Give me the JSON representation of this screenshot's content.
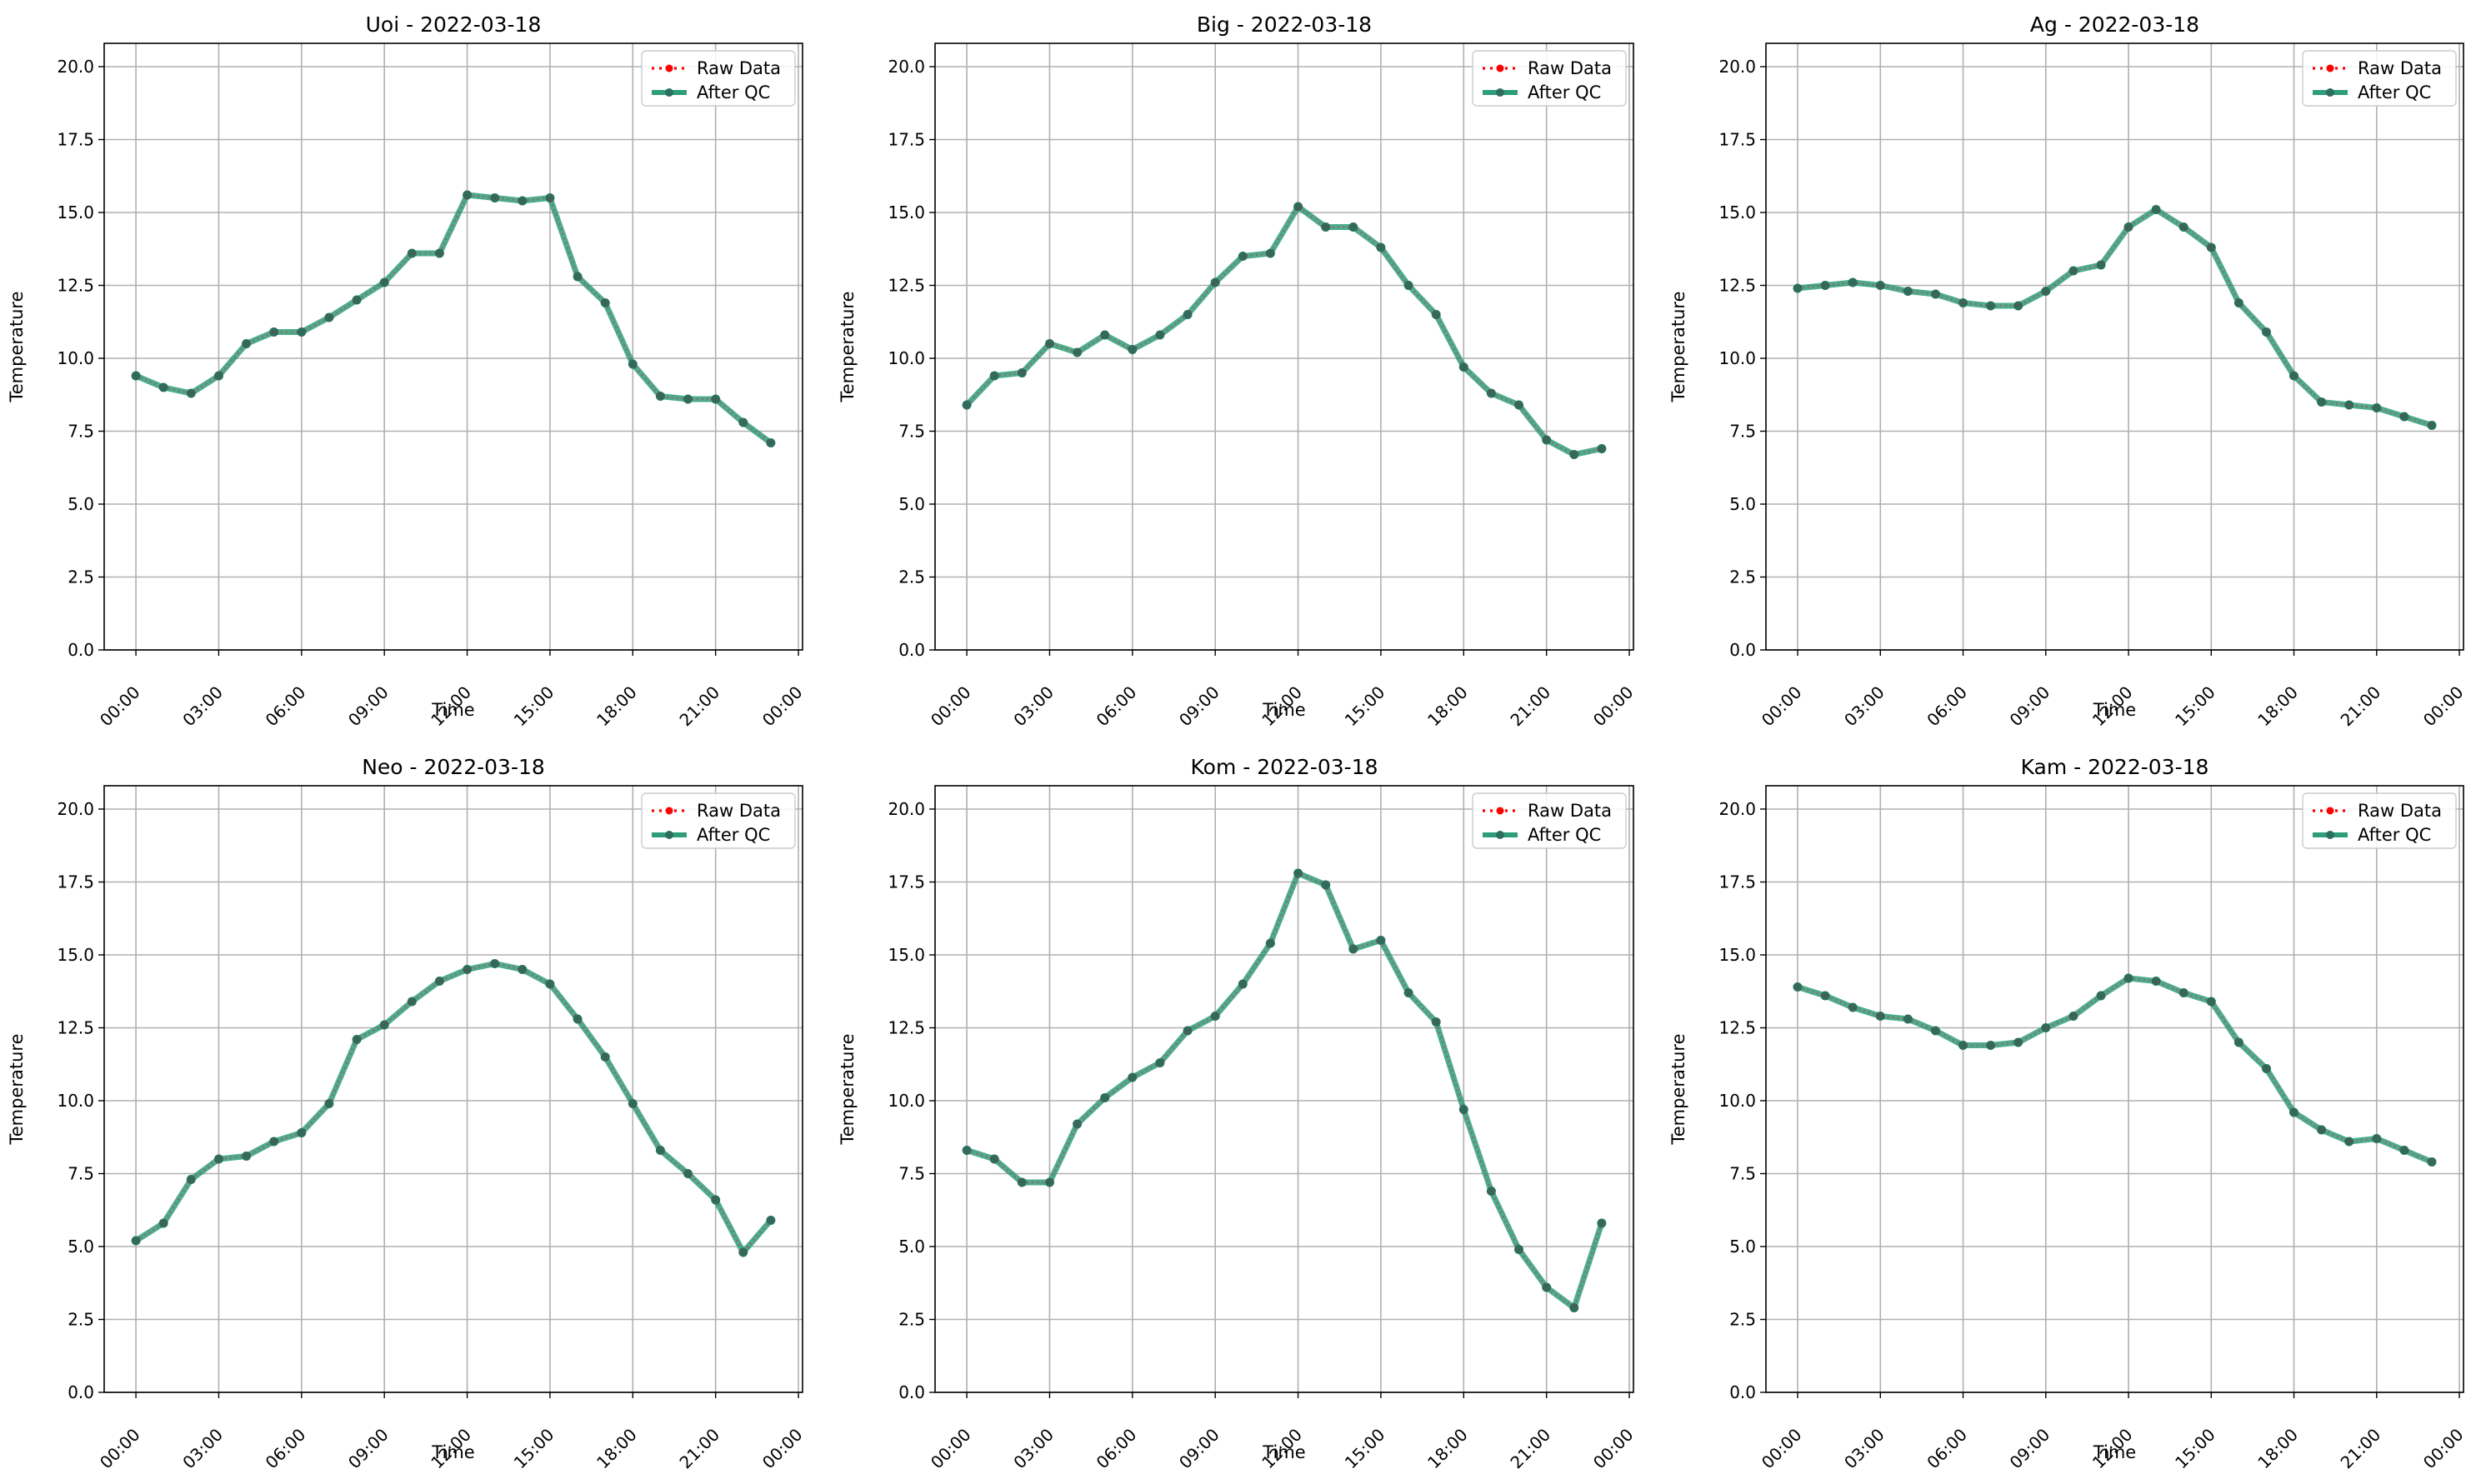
{
  "colors": {
    "raw": "#ff0000",
    "after_qc": "#2e9e7a",
    "after_qc_marker": "#2d6e5e",
    "grid": "#b0b0b0",
    "axes": "#000000"
  },
  "chart_data": [
    {
      "type": "line",
      "title": "Uoi - 2022-03-18",
      "xlabel": "Time",
      "ylabel": "Temperature",
      "x_hours": [
        0,
        1,
        2,
        3,
        4,
        5,
        6,
        7,
        8,
        9,
        10,
        11,
        12,
        13,
        14,
        15,
        16,
        17,
        18,
        19,
        20,
        21,
        22,
        23
      ],
      "x_ticks": [
        "00:00",
        "03:00",
        "06:00",
        "09:00",
        "12:00",
        "15:00",
        "18:00",
        "21:00",
        "00:00"
      ],
      "xlim_hours": [
        -1.15,
        24.15
      ],
      "ylim": [
        0,
        20.8
      ],
      "y_ticks": [
        "0.0",
        "2.5",
        "5.0",
        "7.5",
        "10.0",
        "12.5",
        "15.0",
        "17.5",
        "20.0"
      ],
      "grid": true,
      "legend": "top-right",
      "series": [
        {
          "name": "Raw Data",
          "style": "dotted",
          "values": [
            9.4,
            9.0,
            8.8,
            9.4,
            10.5,
            10.9,
            10.9,
            11.4,
            12.0,
            12.6,
            13.6,
            13.6,
            15.6,
            15.5,
            15.4,
            15.5,
            12.8,
            11.9,
            9.8,
            8.7,
            8.6,
            8.6,
            7.8,
            7.1
          ]
        },
        {
          "name": "After QC",
          "style": "solid",
          "values": [
            9.4,
            9.0,
            8.8,
            9.4,
            10.5,
            10.9,
            10.9,
            11.4,
            12.0,
            12.6,
            13.6,
            13.6,
            15.6,
            15.5,
            15.4,
            15.5,
            12.8,
            11.9,
            9.8,
            8.7,
            8.6,
            8.6,
            7.8,
            7.1
          ]
        }
      ]
    },
    {
      "type": "line",
      "title": "Big - 2022-03-18",
      "xlabel": "Time",
      "ylabel": "Temperature",
      "x_hours": [
        0,
        1,
        2,
        3,
        4,
        5,
        6,
        7,
        8,
        9,
        10,
        11,
        12,
        13,
        14,
        15,
        16,
        17,
        18,
        19,
        20,
        21,
        22,
        23
      ],
      "x_ticks": [
        "00:00",
        "03:00",
        "06:00",
        "09:00",
        "12:00",
        "15:00",
        "18:00",
        "21:00",
        "00:00"
      ],
      "xlim_hours": [
        -1.15,
        24.15
      ],
      "ylim": [
        0,
        20.8
      ],
      "y_ticks": [
        "0.0",
        "2.5",
        "5.0",
        "7.5",
        "10.0",
        "12.5",
        "15.0",
        "17.5",
        "20.0"
      ],
      "grid": true,
      "legend": "top-right",
      "series": [
        {
          "name": "Raw Data",
          "style": "dotted",
          "values": [
            8.4,
            9.4,
            9.5,
            10.5,
            10.2,
            10.8,
            10.3,
            10.8,
            11.5,
            12.6,
            13.5,
            13.6,
            15.2,
            14.5,
            14.5,
            13.8,
            12.5,
            11.5,
            9.7,
            8.8,
            8.4,
            7.2,
            6.7,
            6.9
          ]
        },
        {
          "name": "After QC",
          "style": "solid",
          "values": [
            8.4,
            9.4,
            9.5,
            10.5,
            10.2,
            10.8,
            10.3,
            10.8,
            11.5,
            12.6,
            13.5,
            13.6,
            15.2,
            14.5,
            14.5,
            13.8,
            12.5,
            11.5,
            9.7,
            8.8,
            8.4,
            7.2,
            6.7,
            6.9
          ]
        }
      ]
    },
    {
      "type": "line",
      "title": "Ag - 2022-03-18",
      "xlabel": "Time",
      "ylabel": "Temperature",
      "x_hours": [
        0,
        1,
        2,
        3,
        4,
        5,
        6,
        7,
        8,
        9,
        10,
        11,
        12,
        13,
        14,
        15,
        16,
        17,
        18,
        19,
        20,
        21,
        22,
        23
      ],
      "x_ticks": [
        "00:00",
        "03:00",
        "06:00",
        "09:00",
        "12:00",
        "15:00",
        "18:00",
        "21:00",
        "00:00"
      ],
      "xlim_hours": [
        -1.15,
        24.15
      ],
      "ylim": [
        0,
        20.8
      ],
      "y_ticks": [
        "0.0",
        "2.5",
        "5.0",
        "7.5",
        "10.0",
        "12.5",
        "15.0",
        "17.5",
        "20.0"
      ],
      "grid": true,
      "legend": "top-right",
      "series": [
        {
          "name": "Raw Data",
          "style": "dotted",
          "values": [
            12.4,
            12.5,
            12.6,
            12.5,
            12.3,
            12.2,
            11.9,
            11.8,
            11.8,
            12.3,
            13.0,
            13.2,
            14.5,
            15.1,
            14.5,
            13.8,
            11.9,
            10.9,
            9.4,
            8.5,
            8.4,
            8.3,
            8.0,
            7.7
          ]
        },
        {
          "name": "After QC",
          "style": "solid",
          "values": [
            12.4,
            12.5,
            12.6,
            12.5,
            12.3,
            12.2,
            11.9,
            11.8,
            11.8,
            12.3,
            13.0,
            13.2,
            14.5,
            15.1,
            14.5,
            13.8,
            11.9,
            10.9,
            9.4,
            8.5,
            8.4,
            8.3,
            8.0,
            7.7
          ]
        }
      ]
    },
    {
      "type": "line",
      "title": "Neo - 2022-03-18",
      "xlabel": "Time",
      "ylabel": "Temperature",
      "x_hours": [
        0,
        1,
        2,
        3,
        4,
        5,
        6,
        7,
        8,
        9,
        10,
        11,
        12,
        13,
        14,
        15,
        16,
        17,
        18,
        19,
        20,
        21,
        22,
        23
      ],
      "x_ticks": [
        "00:00",
        "03:00",
        "06:00",
        "09:00",
        "12:00",
        "15:00",
        "18:00",
        "21:00",
        "00:00"
      ],
      "xlim_hours": [
        -1.15,
        24.15
      ],
      "ylim": [
        0,
        20.8
      ],
      "y_ticks": [
        "0.0",
        "2.5",
        "5.0",
        "7.5",
        "10.0",
        "12.5",
        "15.0",
        "17.5",
        "20.0"
      ],
      "grid": true,
      "legend": "top-right",
      "series": [
        {
          "name": "Raw Data",
          "style": "dotted",
          "values": [
            5.2,
            5.8,
            7.3,
            8.0,
            8.1,
            8.6,
            8.9,
            9.9,
            12.1,
            12.6,
            13.4,
            14.1,
            14.5,
            14.7,
            14.5,
            14.0,
            12.8,
            11.5,
            9.9,
            8.3,
            7.5,
            6.6,
            4.8,
            5.9
          ]
        },
        {
          "name": "After QC",
          "style": "solid",
          "values": [
            5.2,
            5.8,
            7.3,
            8.0,
            8.1,
            8.6,
            8.9,
            9.9,
            12.1,
            12.6,
            13.4,
            14.1,
            14.5,
            14.7,
            14.5,
            14.0,
            12.8,
            11.5,
            9.9,
            8.3,
            7.5,
            6.6,
            4.8,
            5.9
          ]
        }
      ]
    },
    {
      "type": "line",
      "title": "Kom - 2022-03-18",
      "xlabel": "Time",
      "ylabel": "Temperature",
      "x_hours": [
        0,
        1,
        2,
        3,
        4,
        5,
        6,
        7,
        8,
        9,
        10,
        11,
        12,
        13,
        14,
        15,
        16,
        17,
        18,
        19,
        20,
        21,
        22,
        23
      ],
      "x_ticks": [
        "00:00",
        "03:00",
        "06:00",
        "09:00",
        "12:00",
        "15:00",
        "18:00",
        "21:00",
        "00:00"
      ],
      "xlim_hours": [
        -1.15,
        24.15
      ],
      "ylim": [
        0,
        20.8
      ],
      "y_ticks": [
        "0.0",
        "2.5",
        "5.0",
        "7.5",
        "10.0",
        "12.5",
        "15.0",
        "17.5",
        "20.0"
      ],
      "grid": true,
      "legend": "top-right",
      "series": [
        {
          "name": "Raw Data",
          "style": "dotted",
          "values": [
            8.3,
            8.0,
            7.2,
            7.2,
            9.2,
            10.1,
            10.8,
            11.3,
            12.4,
            12.9,
            14.0,
            15.4,
            17.8,
            17.4,
            15.2,
            15.5,
            13.7,
            12.7,
            9.7,
            6.9,
            4.9,
            3.6,
            2.9,
            5.8
          ]
        },
        {
          "name": "After QC",
          "style": "solid",
          "values": [
            8.3,
            8.0,
            7.2,
            7.2,
            9.2,
            10.1,
            10.8,
            11.3,
            12.4,
            12.9,
            14.0,
            15.4,
            17.8,
            17.4,
            15.2,
            15.5,
            13.7,
            12.7,
            9.7,
            6.9,
            4.9,
            3.6,
            2.9,
            5.8
          ]
        }
      ]
    },
    {
      "type": "line",
      "title": "Kam - 2022-03-18",
      "xlabel": "Time",
      "ylabel": "Temperature",
      "x_hours": [
        0,
        1,
        2,
        3,
        4,
        5,
        6,
        7,
        8,
        9,
        10,
        11,
        12,
        13,
        14,
        15,
        16,
        17,
        18,
        19,
        20,
        21,
        22,
        23
      ],
      "x_ticks": [
        "00:00",
        "03:00",
        "06:00",
        "09:00",
        "12:00",
        "15:00",
        "18:00",
        "21:00",
        "00:00"
      ],
      "xlim_hours": [
        -1.15,
        24.15
      ],
      "ylim": [
        0,
        20.8
      ],
      "y_ticks": [
        "0.0",
        "2.5",
        "5.0",
        "7.5",
        "10.0",
        "12.5",
        "15.0",
        "17.5",
        "20.0"
      ],
      "grid": true,
      "legend": "top-right",
      "series": [
        {
          "name": "Raw Data",
          "style": "dotted",
          "values": [
            13.9,
            13.6,
            13.2,
            12.9,
            12.8,
            12.4,
            11.9,
            11.9,
            12.0,
            12.5,
            12.9,
            13.6,
            14.2,
            14.1,
            13.7,
            13.4,
            12.0,
            11.1,
            9.6,
            9.0,
            8.6,
            8.7,
            8.3,
            7.9
          ]
        },
        {
          "name": "After QC",
          "style": "solid",
          "values": [
            13.9,
            13.6,
            13.2,
            12.9,
            12.8,
            12.4,
            11.9,
            11.9,
            12.0,
            12.5,
            12.9,
            13.6,
            14.2,
            14.1,
            13.7,
            13.4,
            12.0,
            11.1,
            9.6,
            9.0,
            8.6,
            8.7,
            8.3,
            7.9
          ]
        }
      ]
    }
  ]
}
